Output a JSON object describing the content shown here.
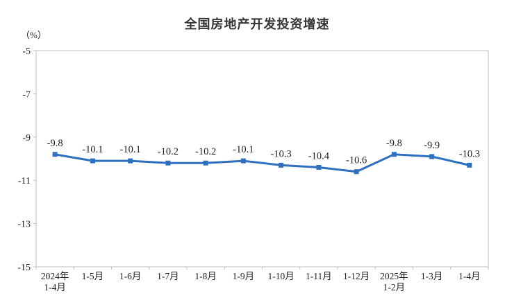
{
  "chart_data": {
    "type": "line",
    "title": "全国房地产开发投资增速",
    "unit_label": "（%）",
    "categories": [
      [
        "2024年",
        "1-4月"
      ],
      [
        "1-5月"
      ],
      [
        "1-6月"
      ],
      [
        "1-7月"
      ],
      [
        "1-8月"
      ],
      [
        "1-9月"
      ],
      [
        "1-10月"
      ],
      [
        "1-11月"
      ],
      [
        "1-12月"
      ],
      [
        "2025年",
        "1-2月"
      ],
      [
        "1-3月"
      ],
      [
        "1-4月"
      ]
    ],
    "values": [
      -9.8,
      -10.1,
      -10.1,
      -10.2,
      -10.2,
      -10.1,
      -10.3,
      -10.4,
      -10.6,
      -9.8,
      -9.9,
      -10.3
    ],
    "data_labels": [
      "-9.8",
      "-10.1",
      "-10.1",
      "-10.2",
      "-10.2",
      "-10.1",
      "-10.3",
      "-10.4",
      "-10.6",
      "-9.8",
      "-9.9",
      "-10.3"
    ],
    "y_ticks": [
      "-5",
      "-7",
      "-9",
      "-11",
      "-13",
      "-15"
    ],
    "y_tick_values": [
      -5,
      -7,
      -9,
      -11,
      -13,
      -15
    ],
    "ylim": [
      -15,
      -5
    ],
    "grid": false,
    "legend": "none",
    "colors": {
      "line": "#2E6FC0",
      "marker": "#2E6FC0",
      "axis": "#BFBFBF",
      "text": "#1F1F1F",
      "title": "#333333"
    }
  }
}
